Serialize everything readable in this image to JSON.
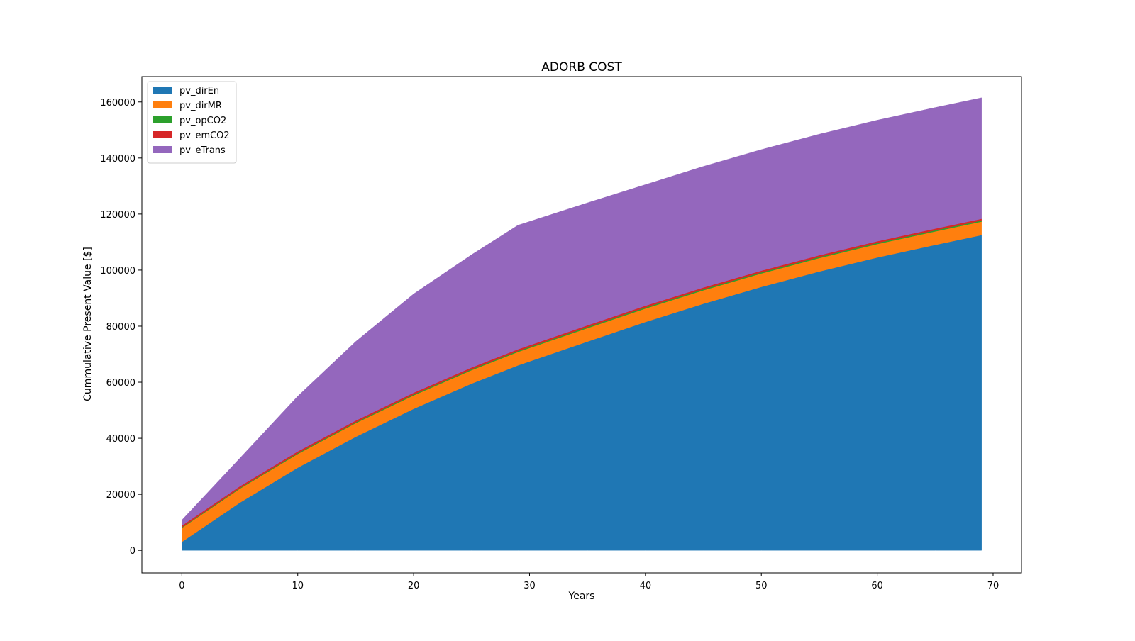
{
  "chart_data": {
    "type": "area",
    "stacked": true,
    "title": "ADORB COST",
    "xlabel": "Years",
    "ylabel": "Cummulative Present Value [$]",
    "xlim": [
      -3.45,
      72.45
    ],
    "ylim": [
      -8050,
      169050
    ],
    "xticks": [
      0,
      10,
      20,
      30,
      40,
      50,
      60,
      70
    ],
    "yticks": [
      0,
      20000,
      40000,
      60000,
      80000,
      100000,
      120000,
      140000,
      160000
    ],
    "grid": false,
    "legend_position": "top-left",
    "x": [
      0,
      5,
      10,
      15,
      20,
      25,
      29,
      35,
      40,
      45,
      50,
      55,
      60,
      65,
      69
    ],
    "series": [
      {
        "name": "pv_dirEn",
        "color": "#1f77b4",
        "values": [
          3000,
          17000,
          29500,
          40500,
          50500,
          59500,
          66000,
          74500,
          81500,
          88000,
          94000,
          99500,
          104500,
          109000,
          112500
        ]
      },
      {
        "name": "pv_dirMR",
        "color": "#ff7f0e",
        "values": [
          5000,
          5000,
          4900,
          4900,
          4800,
          4800,
          4800,
          4800,
          4800,
          4800,
          4800,
          4800,
          4800,
          4800,
          4800
        ]
      },
      {
        "name": "pv_opCO2",
        "color": "#2ca02c",
        "values": [
          200,
          250,
          300,
          300,
          350,
          350,
          350,
          400,
          400,
          400,
          400,
          400,
          400,
          400,
          400
        ]
      },
      {
        "name": "pv_emCO2",
        "color": "#d62728",
        "values": [
          600,
          600,
          600,
          600,
          600,
          600,
          600,
          600,
          600,
          600,
          600,
          600,
          600,
          600,
          600
        ]
      },
      {
        "name": "pv_eTrans",
        "color": "#9467bd",
        "values": [
          2000,
          10000,
          19700,
          28200,
          35250,
          40250,
          44250,
          43700,
          43200,
          43200,
          43200,
          43200,
          43200,
          43200,
          43200
        ]
      }
    ]
  }
}
